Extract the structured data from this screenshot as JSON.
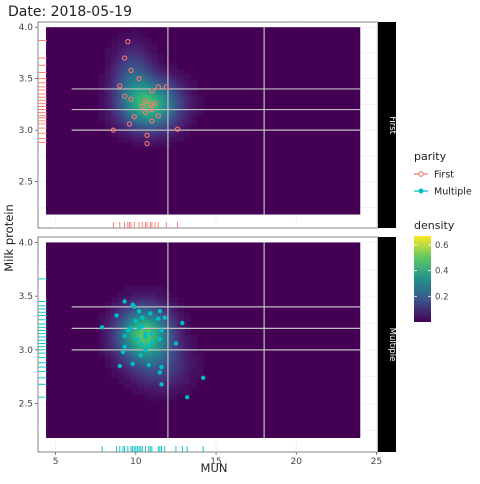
{
  "chart_data": {
    "type": "scatter",
    "title": "Date: 2018-05-19",
    "xlabel": "MUN",
    "ylabel": "Milk protein",
    "xlim": [
      3.9,
      25.1
    ],
    "ylim": [
      2.05,
      4.05
    ],
    "x_ticks": [
      "5",
      "10",
      "15",
      "20",
      "25"
    ],
    "x_tick_values": [
      5,
      10,
      15,
      20,
      25
    ],
    "y_ticks": [
      "2.5",
      "3.0",
      "3.5",
      "4.0"
    ],
    "y_tick_values": [
      2.5,
      3.0,
      3.5,
      4.0
    ],
    "grid": true,
    "reference_lines": {
      "vertical": [
        12,
        18
      ],
      "horizontal": [
        3.0,
        3.2,
        3.4
      ]
    },
    "heatmap_extent": {
      "x": [
        4.4,
        24
      ],
      "y": [
        2.18,
        4.0
      ]
    },
    "colors": {
      "First": "#f8766d",
      "Multiple": "#00bfc4",
      "panel_bg": "#440154",
      "strip_bg": "#000000",
      "ref_line": "#c0c0c0"
    },
    "legend": {
      "position": "right",
      "parity_title": "parity",
      "parity_items": [
        "First",
        "Multiple"
      ],
      "density_title": "density",
      "density_ticks": [
        "0.2",
        "0.4",
        "0.6"
      ],
      "density_tick_values": [
        0.2,
        0.4,
        0.6
      ],
      "density_range": [
        0,
        0.67
      ]
    },
    "panels": [
      {
        "label": "First",
        "marker": "open-circle",
        "points": [
          [
            9.5,
            3.86
          ],
          [
            9.3,
            3.7
          ],
          [
            9.7,
            3.58
          ],
          [
            10.2,
            3.5
          ],
          [
            9.0,
            3.43
          ],
          [
            11.4,
            3.42
          ],
          [
            11.9,
            3.42
          ],
          [
            11.0,
            3.38
          ],
          [
            9.3,
            3.33
          ],
          [
            9.7,
            3.3
          ],
          [
            10.6,
            3.28
          ],
          [
            11.2,
            3.26
          ],
          [
            10.9,
            3.25
          ],
          [
            10.4,
            3.23
          ],
          [
            11.0,
            3.2
          ],
          [
            10.6,
            3.17
          ],
          [
            11.4,
            3.14
          ],
          [
            9.9,
            3.13
          ],
          [
            11.0,
            3.09
          ],
          [
            9.6,
            3.06
          ],
          [
            8.6,
            3.0
          ],
          [
            10.7,
            2.95
          ],
          [
            12.6,
            3.01
          ],
          [
            10.7,
            2.87
          ]
        ],
        "rug_y": [
          3.87,
          3.7,
          3.63,
          3.56,
          3.5,
          3.46,
          3.42,
          3.39,
          3.35,
          3.32,
          3.29,
          3.26,
          3.23,
          3.2,
          3.17,
          3.14,
          3.12,
          3.09,
          3.06,
          3.02,
          2.97,
          2.92,
          2.88
        ],
        "rug_x": [
          8.6,
          9.0,
          9.3,
          9.5,
          9.6,
          9.7,
          9.9,
          10.2,
          10.4,
          10.6,
          10.7,
          10.9,
          11.0,
          11.2,
          11.4,
          11.9,
          12.6
        ],
        "density_peaks": [
          {
            "x": 10.9,
            "y": 3.25,
            "h": 0.45,
            "sx": 1.2,
            "sy": 0.16
          },
          {
            "x": 9.8,
            "y": 3.52,
            "h": 0.18,
            "sx": 0.8,
            "sy": 0.2
          }
        ]
      },
      {
        "label": "Multiple",
        "marker": "filled-circle",
        "points": [
          [
            9.3,
            3.45
          ],
          [
            9.8,
            3.42
          ],
          [
            9.9,
            3.4
          ],
          [
            10.2,
            3.36
          ],
          [
            11.5,
            3.36
          ],
          [
            11.8,
            3.3
          ],
          [
            12.9,
            3.25
          ],
          [
            10.9,
            3.34
          ],
          [
            10.4,
            3.3
          ],
          [
            8.8,
            3.32
          ],
          [
            11.4,
            3.29
          ],
          [
            7.9,
            3.21
          ],
          [
            10.0,
            3.27
          ],
          [
            10.4,
            3.22
          ],
          [
            10.2,
            3.2
          ],
          [
            9.7,
            3.2
          ],
          [
            11.0,
            3.15
          ],
          [
            10.6,
            3.15
          ],
          [
            11.6,
            3.18
          ],
          [
            10.1,
            3.1
          ],
          [
            10.6,
            3.12
          ],
          [
            11.0,
            3.07
          ],
          [
            11.5,
            3.1
          ],
          [
            9.3,
            3.13
          ],
          [
            9.5,
            3.18
          ],
          [
            10.3,
            3.05
          ],
          [
            10.8,
            3.04
          ],
          [
            12.5,
            3.06
          ],
          [
            9.3,
            3.03
          ],
          [
            10.6,
            3.0
          ],
          [
            9.2,
            2.98
          ],
          [
            10.3,
            2.95
          ],
          [
            9.0,
            2.85
          ],
          [
            9.8,
            2.87
          ],
          [
            11.6,
            2.84
          ],
          [
            10.8,
            2.86
          ],
          [
            11.5,
            2.79
          ],
          [
            11.6,
            2.68
          ],
          [
            14.2,
            2.74
          ],
          [
            13.2,
            2.56
          ]
        ],
        "rug_y": [
          3.66,
          3.45,
          3.41,
          3.38,
          3.35,
          3.32,
          3.28,
          3.24,
          3.21,
          3.18,
          3.15,
          3.12,
          3.09,
          3.06,
          3.03,
          3.0,
          2.97,
          2.93,
          2.88,
          2.84,
          2.8,
          2.74,
          2.68,
          2.56
        ],
        "rug_x": [
          7.9,
          8.8,
          9.0,
          9.2,
          9.3,
          9.5,
          9.7,
          9.8,
          9.9,
          10.0,
          10.1,
          10.2,
          10.3,
          10.4,
          10.6,
          10.8,
          10.9,
          11.0,
          11.4,
          11.5,
          11.6,
          11.8,
          12.5,
          12.9,
          13.2,
          14.2
        ],
        "density_peaks": [
          {
            "x": 10.5,
            "y": 3.15,
            "h": 0.5,
            "sx": 1.1,
            "sy": 0.17
          },
          {
            "x": 11.6,
            "y": 2.85,
            "h": 0.12,
            "sx": 1.2,
            "sy": 0.15
          }
        ]
      }
    ]
  }
}
